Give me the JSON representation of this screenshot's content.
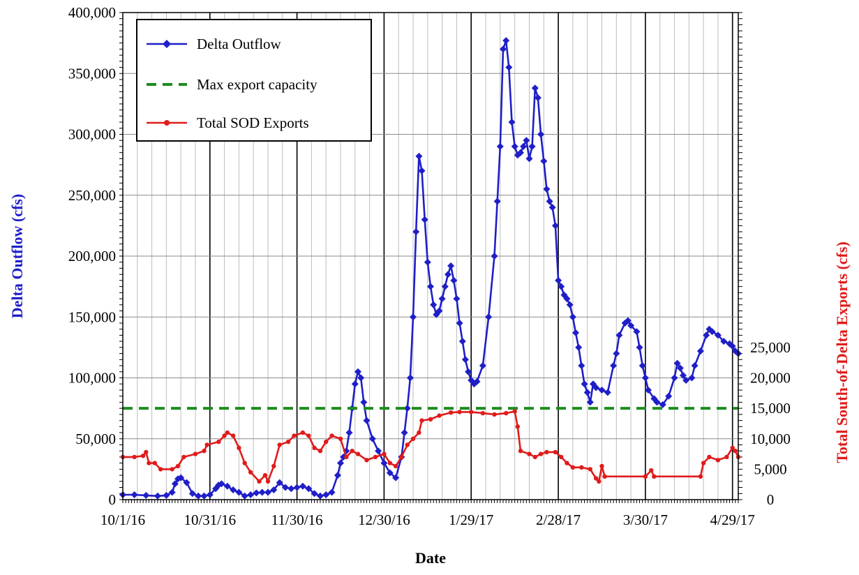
{
  "chart_data": {
    "type": "line",
    "title": "",
    "xlabel": "Date",
    "ylabel": "Delta Outflow (cfs)",
    "y2label": "Total South-of-Delta Exports (cfs)",
    "x_range": [
      "10/1/16",
      "5/1/17"
    ],
    "x_ticks": [
      "10/1/16",
      "10/31/16",
      "11/30/16",
      "12/30/16",
      "1/29/17",
      "2/28/17",
      "3/30/17",
      "4/29/17"
    ],
    "ylim": [
      0,
      400000
    ],
    "y_ticks": [
      "0",
      "50,000",
      "100,000",
      "150,000",
      "200,000",
      "250,000",
      "300,000",
      "350,000",
      "400,000"
    ],
    "y2lim": [
      0,
      80000
    ],
    "y2_ticks": [
      "0",
      "5,000",
      "10,000",
      "15,000",
      "20,000",
      "25,000"
    ],
    "grid": true,
    "legend_position": "top-left",
    "colors": {
      "delta_outflow": "#1F1FC8",
      "max_export": "#1E8C1E",
      "sod_exports": "#E01B1B"
    },
    "series": [
      {
        "name": "Delta Outflow",
        "axis": "left",
        "marker": "diamond",
        "points": [
          [
            "10/1/16",
            4000
          ],
          [
            "10/5/16",
            4000
          ],
          [
            "10/9/16",
            3500
          ],
          [
            "10/13/16",
            3000
          ],
          [
            "10/16/16",
            3500
          ],
          [
            "10/18/16",
            6000
          ],
          [
            "10/19/16",
            13000
          ],
          [
            "10/20/16",
            17000
          ],
          [
            "10/21/16",
            18000
          ],
          [
            "10/23/16",
            14000
          ],
          [
            "10/25/16",
            5000
          ],
          [
            "10/27/16",
            3000
          ],
          [
            "10/29/16",
            3000
          ],
          [
            "10/31/16",
            4000
          ],
          [
            "11/2/16",
            9000
          ],
          [
            "11/3/16",
            12000
          ],
          [
            "11/4/16",
            13000
          ],
          [
            "11/6/16",
            11000
          ],
          [
            "11/8/16",
            8000
          ],
          [
            "11/10/16",
            6000
          ],
          [
            "11/12/16",
            3000
          ],
          [
            "11/14/16",
            4000
          ],
          [
            "11/16/16",
            5500
          ],
          [
            "11/18/16",
            6000
          ],
          [
            "11/20/16",
            6000
          ],
          [
            "11/22/16",
            8000
          ],
          [
            "11/24/16",
            14000
          ],
          [
            "11/26/16",
            10000
          ],
          [
            "11/28/16",
            9000
          ],
          [
            "11/30/16",
            10000
          ],
          [
            "12/2/16",
            11000
          ],
          [
            "12/4/16",
            9000
          ],
          [
            "12/6/16",
            5000
          ],
          [
            "12/8/16",
            3000
          ],
          [
            "12/10/16",
            4000
          ],
          [
            "12/12/16",
            6000
          ],
          [
            "12/14/16",
            20000
          ],
          [
            "12/15/16",
            30000
          ],
          [
            "12/16/16",
            35000
          ],
          [
            "12/17/16",
            40000
          ],
          [
            "12/18/16",
            55000
          ],
          [
            "12/19/16",
            75000
          ],
          [
            "12/20/16",
            95000
          ],
          [
            "12/21/16",
            105000
          ],
          [
            "12/22/16",
            100000
          ],
          [
            "12/23/16",
            80000
          ],
          [
            "12/24/16",
            65000
          ],
          [
            "12/26/16",
            50000
          ],
          [
            "12/28/16",
            40000
          ],
          [
            "12/30/16",
            30000
          ],
          [
            "1/1/17",
            22000
          ],
          [
            "1/3/17",
            18000
          ],
          [
            "1/5/17",
            35000
          ],
          [
            "1/6/17",
            55000
          ],
          [
            "1/7/17",
            75000
          ],
          [
            "1/8/17",
            100000
          ],
          [
            "1/9/17",
            150000
          ],
          [
            "1/10/17",
            220000
          ],
          [
            "1/11/17",
            282000
          ],
          [
            "1/12/17",
            270000
          ],
          [
            "1/13/17",
            230000
          ],
          [
            "1/14/17",
            195000
          ],
          [
            "1/15/17",
            175000
          ],
          [
            "1/16/17",
            160000
          ],
          [
            "1/17/17",
            152000
          ],
          [
            "1/18/17",
            155000
          ],
          [
            "1/19/17",
            165000
          ],
          [
            "1/20/17",
            175000
          ],
          [
            "1/21/17",
            185000
          ],
          [
            "1/22/17",
            192000
          ],
          [
            "1/23/17",
            180000
          ],
          [
            "1/24/17",
            165000
          ],
          [
            "1/25/17",
            145000
          ],
          [
            "1/26/17",
            130000
          ],
          [
            "1/27/17",
            115000
          ],
          [
            "1/28/17",
            105000
          ],
          [
            "1/29/17",
            98000
          ],
          [
            "1/30/17",
            95000
          ],
          [
            "1/31/17",
            97000
          ],
          [
            "2/2/17",
            110000
          ],
          [
            "2/4/17",
            150000
          ],
          [
            "2/6/17",
            200000
          ],
          [
            "2/7/17",
            245000
          ],
          [
            "2/8/17",
            290000
          ],
          [
            "2/9/17",
            370000
          ],
          [
            "2/10/17",
            377000
          ],
          [
            "2/11/17",
            355000
          ],
          [
            "2/12/17",
            310000
          ],
          [
            "2/13/17",
            290000
          ],
          [
            "2/14/17",
            283000
          ],
          [
            "2/15/17",
            285000
          ],
          [
            "2/16/17",
            290000
          ],
          [
            "2/17/17",
            295000
          ],
          [
            "2/18/17",
            280000
          ],
          [
            "2/19/17",
            290000
          ],
          [
            "2/20/17",
            338000
          ],
          [
            "2/21/17",
            330000
          ],
          [
            "2/22/17",
            300000
          ],
          [
            "2/23/17",
            278000
          ],
          [
            "2/24/17",
            255000
          ],
          [
            "2/25/17",
            245000
          ],
          [
            "2/26/17",
            240000
          ],
          [
            "2/27/17",
            225000
          ],
          [
            "2/28/17",
            180000
          ],
          [
            "3/1/17",
            175000
          ],
          [
            "3/2/17",
            168000
          ],
          [
            "3/3/17",
            165000
          ],
          [
            "3/4/17",
            160000
          ],
          [
            "3/5/17",
            150000
          ],
          [
            "3/6/17",
            137000
          ],
          [
            "3/7/17",
            125000
          ],
          [
            "3/8/17",
            110000
          ],
          [
            "3/9/17",
            95000
          ],
          [
            "3/10/17",
            88000
          ],
          [
            "3/11/17",
            80000
          ],
          [
            "3/12/17",
            95000
          ],
          [
            "3/13/17",
            92000
          ],
          [
            "3/15/17",
            90000
          ],
          [
            "3/17/17",
            88000
          ],
          [
            "3/19/17",
            110000
          ],
          [
            "3/20/17",
            120000
          ],
          [
            "3/21/17",
            135000
          ],
          [
            "3/23/17",
            145000
          ],
          [
            "3/24/17",
            147000
          ],
          [
            "3/25/17",
            143000
          ],
          [
            "3/27/17",
            138000
          ],
          [
            "3/28/17",
            125000
          ],
          [
            "3/29/17",
            110000
          ],
          [
            "3/30/17",
            100000
          ],
          [
            "3/31/17",
            90000
          ],
          [
            "4/2/17",
            83000
          ],
          [
            "4/3/17",
            80000
          ],
          [
            "4/5/17",
            78000
          ],
          [
            "4/7/17",
            85000
          ],
          [
            "4/9/17",
            100000
          ],
          [
            "4/10/17",
            112000
          ],
          [
            "4/11/17",
            108000
          ],
          [
            "4/12/17",
            102000
          ],
          [
            "4/13/17",
            98000
          ],
          [
            "4/15/17",
            100000
          ],
          [
            "4/16/17",
            110000
          ],
          [
            "4/18/17",
            122000
          ],
          [
            "4/20/17",
            135000
          ],
          [
            "4/21/17",
            140000
          ],
          [
            "4/22/17",
            138000
          ],
          [
            "4/24/17",
            135000
          ],
          [
            "4/26/17",
            130000
          ],
          [
            "4/28/17",
            128000
          ],
          [
            "4/29/17",
            126000
          ],
          [
            "4/30/17",
            122000
          ],
          [
            "5/1/17",
            120000
          ]
        ]
      },
      {
        "name": "Max export capacity",
        "axis": "right",
        "style": "dashed",
        "points": [
          [
            "10/1/16",
            15000
          ],
          [
            "5/1/17",
            15000
          ]
        ]
      },
      {
        "name": "Total SOD Exports",
        "axis": "right",
        "marker": "dot",
        "points": [
          [
            "10/1/16",
            7000
          ],
          [
            "10/5/16",
            7000
          ],
          [
            "10/8/16",
            7200
          ],
          [
            "10/9/16",
            7800
          ],
          [
            "10/10/16",
            6000
          ],
          [
            "10/12/16",
            6000
          ],
          [
            "10/14/16",
            5000
          ],
          [
            "10/18/16",
            5000
          ],
          [
            "10/20/16",
            5500
          ],
          [
            "10/22/16",
            7000
          ],
          [
            "10/26/16",
            7500
          ],
          [
            "10/29/16",
            8000
          ],
          [
            "10/30/16",
            9000
          ],
          [
            "11/3/16",
            9500
          ],
          [
            "11/5/16",
            10500
          ],
          [
            "11/6/16",
            11000
          ],
          [
            "11/8/16",
            10500
          ],
          [
            "11/10/16",
            8500
          ],
          [
            "11/12/16",
            6000
          ],
          [
            "11/14/16",
            4500
          ],
          [
            "11/17/16",
            3000
          ],
          [
            "11/19/16",
            4000
          ],
          [
            "11/20/16",
            3000
          ],
          [
            "11/22/16",
            5500
          ],
          [
            "11/24/16",
            9000
          ],
          [
            "11/27/16",
            9500
          ],
          [
            "11/29/16",
            10500
          ],
          [
            "12/2/16",
            11000
          ],
          [
            "12/4/16",
            10500
          ],
          [
            "12/6/16",
            8500
          ],
          [
            "12/8/16",
            8000
          ],
          [
            "12/10/16",
            9500
          ],
          [
            "12/12/16",
            10500
          ],
          [
            "12/15/16",
            10000
          ],
          [
            "12/17/16",
            7000
          ],
          [
            "12/19/16",
            8000
          ],
          [
            "12/21/16",
            7500
          ],
          [
            "12/24/16",
            6500
          ],
          [
            "12/27/16",
            7000
          ],
          [
            "12/30/16",
            7500
          ],
          [
            "1/1/17",
            6000
          ],
          [
            "1/3/17",
            5500
          ],
          [
            "1/5/17",
            7000
          ],
          [
            "1/7/17",
            9000
          ],
          [
            "1/9/17",
            10000
          ],
          [
            "1/11/17",
            11000
          ],
          [
            "1/12/17",
            13000
          ],
          [
            "1/15/17",
            13200
          ],
          [
            "1/18/17",
            13800
          ],
          [
            "1/22/17",
            14300
          ],
          [
            "1/25/17",
            14400
          ],
          [
            "1/29/17",
            14400
          ],
          [
            "2/2/17",
            14200
          ],
          [
            "2/6/17",
            14000
          ],
          [
            "2/10/17",
            14200
          ],
          [
            "2/13/17",
            14500
          ],
          [
            "2/14/17",
            12000
          ],
          [
            "2/15/17",
            8000
          ],
          [
            "2/18/17",
            7500
          ],
          [
            "2/20/17",
            7000
          ],
          [
            "2/22/17",
            7500
          ],
          [
            "2/24/17",
            7800
          ],
          [
            "2/27/17",
            7800
          ],
          [
            "3/1/17",
            7000
          ],
          [
            "3/3/17",
            6000
          ],
          [
            "3/5/17",
            5300
          ],
          [
            "3/8/17",
            5300
          ],
          [
            "3/11/17",
            5000
          ],
          [
            "3/13/17",
            3500
          ],
          [
            "3/14/17",
            3000
          ],
          [
            "3/15/17",
            5500
          ],
          [
            "3/16/17",
            3800
          ],
          [
            "3/30/17",
            3800
          ],
          [
            "4/1/17",
            4800
          ],
          [
            "4/2/17",
            3800
          ],
          [
            "4/18/17",
            3800
          ],
          [
            "4/19/17",
            6000
          ],
          [
            "4/21/17",
            7000
          ],
          [
            "4/24/17",
            6500
          ],
          [
            "4/27/17",
            7000
          ],
          [
            "4/29/17",
            8500
          ],
          [
            "4/30/17",
            8000
          ],
          [
            "5/1/17",
            7000
          ]
        ]
      }
    ]
  }
}
